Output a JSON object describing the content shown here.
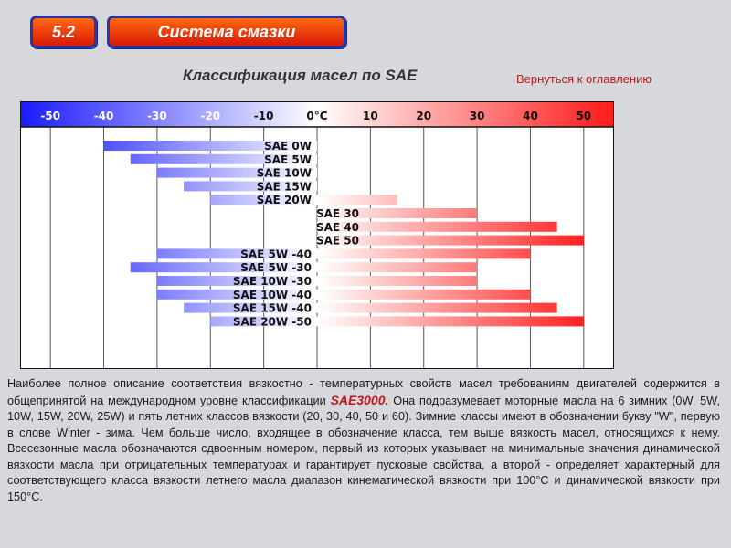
{
  "header": {
    "section_number": "5.2",
    "section_title": "Система смазки",
    "page_title": "Классификация масел по SAE",
    "back_link": "Вернуться к оглавлению"
  },
  "colors": {
    "cold": "#1a1aff",
    "hot": "#ff1a1a",
    "badge": "#e8380e",
    "badge_border": "#2a36a8"
  },
  "chart_data": {
    "type": "bar",
    "orientation": "horizontal-range",
    "x_tick_labels": [
      "-50",
      "-40",
      "-30",
      "-20",
      "-10",
      "0°C",
      "10",
      "20",
      "30",
      "40",
      "50"
    ],
    "x_ticks": [
      -50,
      -40,
      -30,
      -20,
      -10,
      0,
      10,
      20,
      30,
      40,
      50
    ],
    "xlim": [
      -55,
      55
    ],
    "grid": true,
    "bars": [
      {
        "label": "SAE 0W",
        "min": -40,
        "max": 0
      },
      {
        "label": "SAE 5W",
        "min": -35,
        "max": 0
      },
      {
        "label": "SAE 10W",
        "min": -30,
        "max": 0
      },
      {
        "label": "SAE 15W",
        "min": -25,
        "max": 0
      },
      {
        "label": "SAE 20W",
        "min": -20,
        "max": 15
      },
      {
        "label": "SAE 30",
        "min": 0,
        "max": 30
      },
      {
        "label": "SAE 40",
        "min": 0,
        "max": 45
      },
      {
        "label": "SAE 50",
        "min": 0,
        "max": 50
      },
      {
        "label": "SAE 5W -40",
        "min": -30,
        "max": 40
      },
      {
        "label": "SAE 5W -30",
        "min": -35,
        "max": 30
      },
      {
        "label": "SAE 10W -30",
        "min": -30,
        "max": 30
      },
      {
        "label": "SAE 10W -40",
        "min": -30,
        "max": 40
      },
      {
        "label": "SAE 15W -40",
        "min": -25,
        "max": 45
      },
      {
        "label": "SAE 20W -50",
        "min": -20,
        "max": 50
      }
    ]
  },
  "description": {
    "part1": "Наиболее полное описание соответствия вязкостно - температурных свойств масел требованиям двигателей содержится в общепринятой на международном уровне классификации ",
    "standard": "SAE3000.",
    "part2": " Она подразумевает моторные масла на 6 зимних (0W, 5W, 10W, 15W, 20W, 25W) и пять летних классов вязкости (20, 30, 40, 50 и 60). Зимние классы имеют в обозначении букву \"W\", первую в слове Winter - зима. Чем больше число, входящее в обозначение класса, тем выше вязкость масел, относящихся к нему. Всесезонные масла обозначаются сдвоенным номером, первый из которых указывает на минимальные значения динамической вязкости масла при отрицательных температурах и гарантирует пусковые свойства, а второй - определяет характерный для соответствующего класса вязкости летнего масла диапазон кинематической вязкости при 100°С и динамической вязкости при 150°С."
  }
}
